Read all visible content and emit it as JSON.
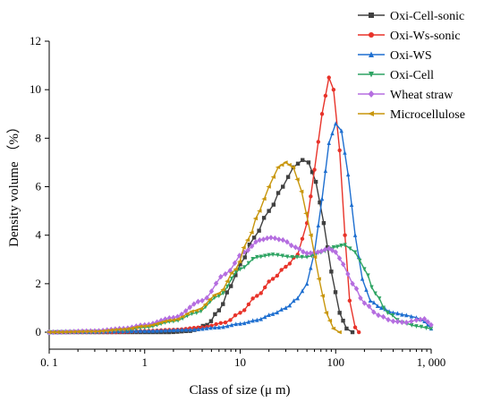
{
  "chart_data": {
    "type": "line",
    "xlabel": "Class of size (μ m)",
    "ylabel": "Density volume （%）",
    "x_scale": "log",
    "xlim": [
      0.1,
      1000
    ],
    "ylim": [
      -0.7,
      12
    ],
    "x_ticks": [
      {
        "value": 0.1,
        "label": "0. 1"
      },
      {
        "value": 1,
        "label": "1"
      },
      {
        "value": 10,
        "label": "10"
      },
      {
        "value": 100,
        "label": "100"
      },
      {
        "value": 1000,
        "label": "1, 000"
      }
    ],
    "y_ticks": [
      {
        "value": 0,
        "label": "0"
      },
      {
        "value": 2,
        "label": "2"
      },
      {
        "value": 4,
        "label": "4"
      },
      {
        "value": 6,
        "label": "6"
      },
      {
        "value": 8,
        "label": "8"
      },
      {
        "value": 10,
        "label": "10"
      },
      {
        "value": 12,
        "label": "12"
      }
    ],
    "grid": false,
    "legend_position": "top-right",
    "series": [
      {
        "name": "Oxi-Cell-sonic",
        "color": "#404040",
        "marker": "square",
        "points": [
          [
            0.1,
            0
          ],
          [
            0.2,
            0
          ],
          [
            0.5,
            0
          ],
          [
            1,
            0
          ],
          [
            1.8,
            0
          ],
          [
            3,
            0.05
          ],
          [
            4.5,
            0.3
          ],
          [
            6,
            0.9
          ],
          [
            8,
            1.9
          ],
          [
            10,
            2.8
          ],
          [
            14,
            3.9
          ],
          [
            20,
            5.0
          ],
          [
            28,
            6.0
          ],
          [
            36,
            6.8
          ],
          [
            45,
            7.1
          ],
          [
            52,
            7.0
          ],
          [
            62,
            6.2
          ],
          [
            75,
            4.5
          ],
          [
            90,
            2.5
          ],
          [
            110,
            0.8
          ],
          [
            130,
            0.15
          ],
          [
            150,
            0
          ]
        ]
      },
      {
        "name": "Oxi-Ws-sonic",
        "color": "#e8332a",
        "marker": "circle",
        "points": [
          [
            0.1,
            0
          ],
          [
            0.5,
            0
          ],
          [
            1,
            0.05
          ],
          [
            2,
            0.1
          ],
          [
            4,
            0.2
          ],
          [
            7,
            0.4
          ],
          [
            10,
            0.8
          ],
          [
            15,
            1.5
          ],
          [
            22,
            2.2
          ],
          [
            30,
            2.7
          ],
          [
            40,
            3.2
          ],
          [
            50,
            4.5
          ],
          [
            60,
            6.7
          ],
          [
            72,
            9.0
          ],
          [
            85,
            10.5
          ],
          [
            95,
            10.0
          ],
          [
            110,
            7.5
          ],
          [
            125,
            4.0
          ],
          [
            140,
            1.3
          ],
          [
            160,
            0.2
          ],
          [
            175,
            0
          ]
        ]
      },
      {
        "name": "Oxi-WS",
        "color": "#1e6fd0",
        "marker": "triangle",
        "points": [
          [
            0.1,
            0
          ],
          [
            1,
            0.05
          ],
          [
            3,
            0.1
          ],
          [
            6,
            0.2
          ],
          [
            10,
            0.35
          ],
          [
            15,
            0.5
          ],
          [
            22,
            0.75
          ],
          [
            30,
            1.0
          ],
          [
            40,
            1.4
          ],
          [
            50,
            2.0
          ],
          [
            60,
            3.3
          ],
          [
            72,
            5.5
          ],
          [
            85,
            7.8
          ],
          [
            100,
            8.6
          ],
          [
            115,
            8.3
          ],
          [
            135,
            6.5
          ],
          [
            160,
            4.0
          ],
          [
            190,
            2.2
          ],
          [
            230,
            1.3
          ],
          [
            300,
            1.0
          ],
          [
            400,
            0.8
          ],
          [
            550,
            0.7
          ],
          [
            700,
            0.6
          ],
          [
            850,
            0.45
          ],
          [
            1000,
            0.15
          ]
        ]
      },
      {
        "name": "Oxi-Cell",
        "color": "#2ea463",
        "marker": "triangle-down",
        "points": [
          [
            0.1,
            0
          ],
          [
            0.3,
            0.02
          ],
          [
            0.6,
            0.08
          ],
          [
            1,
            0.2
          ],
          [
            2,
            0.45
          ],
          [
            3.5,
            0.8
          ],
          [
            6,
            1.5
          ],
          [
            10,
            2.6
          ],
          [
            15,
            3.1
          ],
          [
            22,
            3.2
          ],
          [
            35,
            3.1
          ],
          [
            50,
            3.1
          ],
          [
            70,
            3.3
          ],
          [
            95,
            3.5
          ],
          [
            125,
            3.6
          ],
          [
            160,
            3.3
          ],
          [
            200,
            2.6
          ],
          [
            260,
            1.6
          ],
          [
            350,
            0.8
          ],
          [
            500,
            0.4
          ],
          [
            700,
            0.25
          ],
          [
            1000,
            0.15
          ]
        ]
      },
      {
        "name": "Wheat straw",
        "color": "#b56ee0",
        "marker": "diamond",
        "points": [
          [
            0.1,
            0
          ],
          [
            0.3,
            0.05
          ],
          [
            0.6,
            0.15
          ],
          [
            1,
            0.3
          ],
          [
            2,
            0.6
          ],
          [
            4,
            1.3
          ],
          [
            7,
            2.4
          ],
          [
            11,
            3.3
          ],
          [
            16,
            3.8
          ],
          [
            21,
            3.9
          ],
          [
            28,
            3.8
          ],
          [
            38,
            3.5
          ],
          [
            50,
            3.25
          ],
          [
            65,
            3.3
          ],
          [
            85,
            3.45
          ],
          [
            100,
            3.3
          ],
          [
            120,
            2.8
          ],
          [
            150,
            2.0
          ],
          [
            200,
            1.2
          ],
          [
            280,
            0.7
          ],
          [
            400,
            0.45
          ],
          [
            550,
            0.4
          ],
          [
            700,
            0.5
          ],
          [
            850,
            0.55
          ],
          [
            1000,
            0.3
          ]
        ]
      },
      {
        "name": "Microcellulose",
        "color": "#c8960c",
        "marker": "diamond-left",
        "points": [
          [
            0.1,
            0
          ],
          [
            0.3,
            0.03
          ],
          [
            0.6,
            0.12
          ],
          [
            1,
            0.25
          ],
          [
            2,
            0.5
          ],
          [
            3.5,
            0.9
          ],
          [
            6,
            1.6
          ],
          [
            9,
            2.6
          ],
          [
            12,
            3.8
          ],
          [
            16,
            5.0
          ],
          [
            20,
            6.0
          ],
          [
            25,
            6.8
          ],
          [
            30,
            7.0
          ],
          [
            36,
            6.8
          ],
          [
            44,
            5.8
          ],
          [
            55,
            4.0
          ],
          [
            67,
            2.2
          ],
          [
            80,
            0.8
          ],
          [
            95,
            0.15
          ],
          [
            110,
            0
          ]
        ]
      }
    ]
  }
}
